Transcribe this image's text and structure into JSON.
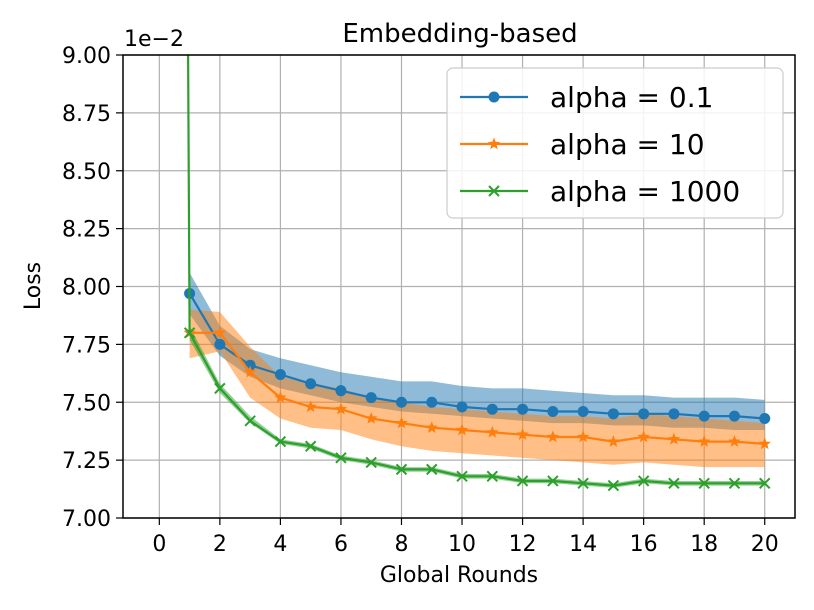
{
  "chart_data": {
    "type": "line",
    "title": "Embedding-based",
    "xlabel": "Global Rounds",
    "ylabel": "Loss",
    "offset_text": "1e−2",
    "xlim": [
      -1.2,
      21
    ],
    "ylim": [
      7.0,
      9.0
    ],
    "xticks": [
      0,
      2,
      4,
      6,
      8,
      10,
      12,
      14,
      16,
      18,
      20
    ],
    "yticks": [
      7.0,
      7.25,
      7.5,
      7.75,
      8.0,
      8.25,
      8.5,
      8.75,
      9.0
    ],
    "ytick_labels": [
      "7.00",
      "7.25",
      "7.50",
      "7.75",
      "8.00",
      "8.25",
      "8.50",
      "8.75",
      "9.00"
    ],
    "grid": true,
    "legend_position": "top-right",
    "x": [
      1,
      2,
      3,
      4,
      5,
      6,
      7,
      8,
      9,
      10,
      11,
      12,
      13,
      14,
      15,
      16,
      17,
      18,
      19,
      20
    ],
    "series": [
      {
        "name": "alpha = 0.1",
        "color": "#1f77b4",
        "marker": "circle",
        "start": null,
        "values": [
          7.97,
          7.75,
          7.66,
          7.62,
          7.58,
          7.55,
          7.52,
          7.5,
          7.5,
          7.48,
          7.47,
          7.47,
          7.46,
          7.46,
          7.45,
          7.45,
          7.45,
          7.44,
          7.44,
          7.43
        ],
        "lower": [
          7.88,
          7.7,
          7.61,
          7.56,
          7.53,
          7.5,
          7.48,
          7.46,
          7.45,
          7.44,
          7.43,
          7.42,
          7.41,
          7.41,
          7.4,
          7.4,
          7.39,
          7.39,
          7.38,
          7.38
        ],
        "upper": [
          8.06,
          7.83,
          7.73,
          7.69,
          7.66,
          7.63,
          7.61,
          7.59,
          7.59,
          7.57,
          7.56,
          7.56,
          7.55,
          7.54,
          7.53,
          7.53,
          7.52,
          7.52,
          7.52,
          7.51
        ]
      },
      {
        "name": "alpha = 10",
        "color": "#ff7f0e",
        "marker": "star",
        "start": null,
        "values": [
          7.8,
          7.8,
          7.63,
          7.52,
          7.48,
          7.47,
          7.43,
          7.41,
          7.39,
          7.38,
          7.37,
          7.36,
          7.35,
          7.35,
          7.33,
          7.35,
          7.34,
          7.33,
          7.33,
          7.32
        ],
        "lower": [
          7.69,
          7.72,
          7.52,
          7.43,
          7.39,
          7.38,
          7.34,
          7.31,
          7.29,
          7.28,
          7.27,
          7.26,
          7.25,
          7.24,
          7.23,
          7.24,
          7.23,
          7.22,
          7.22,
          7.22
        ],
        "upper": [
          7.9,
          7.89,
          7.74,
          7.61,
          7.58,
          7.56,
          7.52,
          7.5,
          7.48,
          7.47,
          7.46,
          7.45,
          7.44,
          7.44,
          7.43,
          7.45,
          7.44,
          7.43,
          7.42,
          7.41
        ]
      },
      {
        "name": "alpha = 1000",
        "color": "#2ca02c",
        "marker": "x",
        "start": {
          "x": 0.95,
          "y": 9.0
        },
        "values": [
          7.8,
          7.56,
          7.42,
          7.33,
          7.31,
          7.26,
          7.24,
          7.21,
          7.21,
          7.18,
          7.18,
          7.16,
          7.16,
          7.15,
          7.14,
          7.16,
          7.15,
          7.15,
          7.15,
          7.15
        ],
        "lower": [
          7.77,
          7.54,
          7.41,
          7.32,
          7.3,
          7.25,
          7.23,
          7.2,
          7.2,
          7.17,
          7.17,
          7.15,
          7.15,
          7.14,
          7.13,
          7.15,
          7.14,
          7.14,
          7.14,
          7.14
        ],
        "upper": [
          7.83,
          7.58,
          7.44,
          7.34,
          7.32,
          7.27,
          7.25,
          7.22,
          7.22,
          7.19,
          7.19,
          7.17,
          7.17,
          7.16,
          7.15,
          7.17,
          7.16,
          7.16,
          7.16,
          7.16
        ]
      }
    ]
  }
}
